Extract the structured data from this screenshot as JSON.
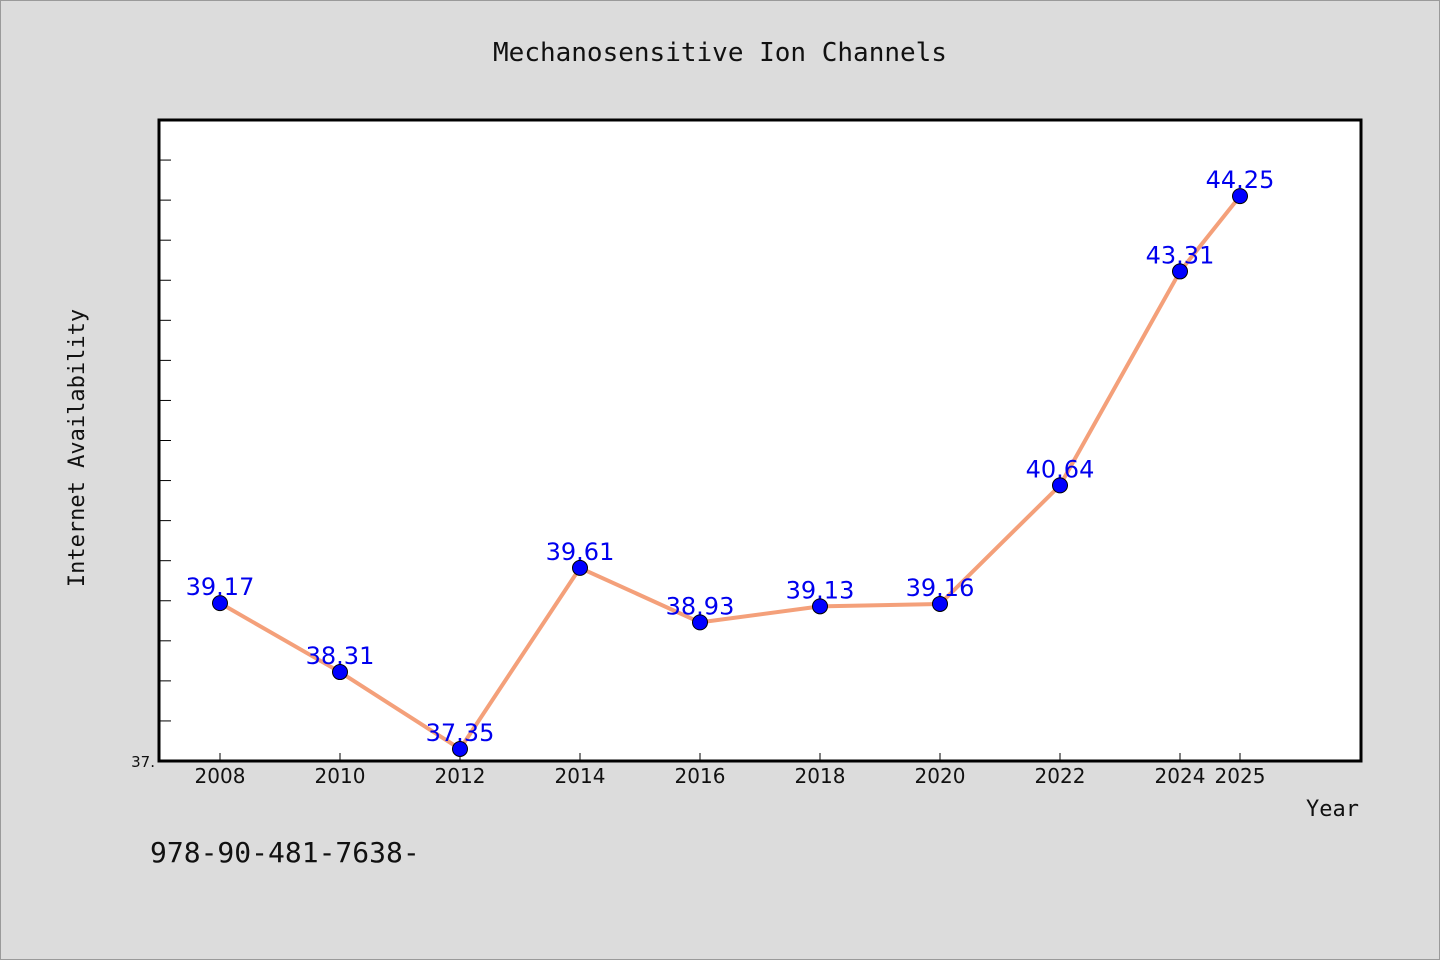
{
  "chart_data": {
    "type": "line",
    "title": "Mechanosensitive Ion Channels",
    "xlabel": "Year",
    "ylabel": "Internet Availability",
    "x": [
      "2008",
      "2010",
      "2012",
      "2014",
      "2016",
      "2018",
      "2020",
      "2022",
      "2024",
      "2025"
    ],
    "series": [
      {
        "values": [
          39.17,
          38.31,
          37.35,
          39.61,
          38.93,
          39.13,
          39.16,
          40.64,
          43.31,
          44.25
        ],
        "labels": [
          "39.17",
          "38.31",
          "37.35",
          "39.61",
          "38.93",
          "39.13",
          "39.16",
          "40.64",
          "43.31",
          "44.25"
        ]
      }
    ],
    "ylim": [
      37.2,
      45.2
    ],
    "yticks_visible": [
      "37."
    ],
    "grid": false,
    "legend": "none",
    "colors": {
      "line": "#f4a07a",
      "marker": "#0000ff",
      "label": "#0000ee",
      "background": "#dcdcdc",
      "plot_background": "#ffffff"
    }
  },
  "footer": {
    "text": "978-90-481-7638-"
  }
}
